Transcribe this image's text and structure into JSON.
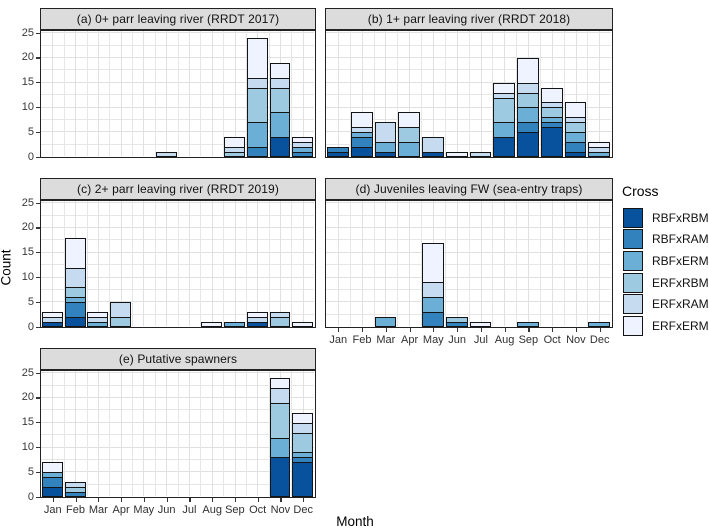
{
  "figure_title": "",
  "axes": {
    "x_title": "Month",
    "y_title": "Count"
  },
  "legend": {
    "title": "Cross",
    "entries": [
      "RBFxRBM",
      "RBFxRAM",
      "RBFxERM",
      "ERFxRBM",
      "ERFxRAM",
      "ERFxERM"
    ]
  },
  "colors": {
    "RBFxRBM": "#08519c",
    "RBFxRAM": "#3182bd",
    "RBFxERM": "#6baed6",
    "ERFxRBM": "#9ecae1",
    "ERFxRAM": "#c6dbef",
    "ERFxERM": "#eff3ff"
  },
  "chart_data": {
    "type": "bar",
    "stacked": true,
    "grid": true,
    "legend_position": "right",
    "xlabel": "Month",
    "ylabel": "Count",
    "ylim": [
      0,
      25
    ],
    "yticks": [
      0,
      5,
      10,
      15,
      20,
      25
    ],
    "categories": [
      "Jan",
      "Feb",
      "Mar",
      "Apr",
      "May",
      "Jun",
      "Jul",
      "Aug",
      "Sep",
      "Oct",
      "Nov",
      "Dec"
    ],
    "stack_order_bottom_to_top": [
      "RBFxRBM",
      "RBFxRAM",
      "RBFxERM",
      "ERFxRBM",
      "ERFxRAM",
      "ERFxERM"
    ],
    "panels": [
      {
        "key": "a",
        "strip": "(a) 0+ parr leaving river (RRDT 2017)",
        "col": 0,
        "row": 0,
        "x_labels": false,
        "y_labels": true,
        "bars": [
          {
            "month": "Jun",
            "total": 1,
            "segments": [
              {
                "cross": "ERFxRAM",
                "value": 1
              }
            ]
          },
          {
            "month": "Sep",
            "total": 4,
            "segments": [
              {
                "cross": "ERFxRBM",
                "value": 1
              },
              {
                "cross": "ERFxRAM",
                "value": 1
              },
              {
                "cross": "ERFxERM",
                "value": 2
              }
            ]
          },
          {
            "month": "Oct",
            "total": 24,
            "segments": [
              {
                "cross": "RBFxRAM",
                "value": 2
              },
              {
                "cross": "RBFxERM",
                "value": 5
              },
              {
                "cross": "ERFxRBM",
                "value": 7
              },
              {
                "cross": "ERFxRAM",
                "value": 2
              },
              {
                "cross": "ERFxERM",
                "value": 8
              }
            ]
          },
          {
            "month": "Nov",
            "total": 19,
            "segments": [
              {
                "cross": "RBFxRBM",
                "value": 4
              },
              {
                "cross": "RBFxERM",
                "value": 5
              },
              {
                "cross": "ERFxRBM",
                "value": 5
              },
              {
                "cross": "ERFxRAM",
                "value": 2
              },
              {
                "cross": "ERFxERM",
                "value": 3
              }
            ]
          },
          {
            "month": "Dec",
            "total": 4,
            "segments": [
              {
                "cross": "RBFxRAM",
                "value": 1
              },
              {
                "cross": "RBFxERM",
                "value": 1
              },
              {
                "cross": "ERFxRAM",
                "value": 1
              },
              {
                "cross": "ERFxERM",
                "value": 1
              }
            ]
          }
        ]
      },
      {
        "key": "b",
        "strip": "(b) 1+ parr leaving river (RRDT 2018)",
        "col": 1,
        "row": 0,
        "x_labels": false,
        "y_labels": false,
        "bars": [
          {
            "month": "Jan",
            "total": 2,
            "segments": [
              {
                "cross": "RBFxRBM",
                "value": 1
              },
              {
                "cross": "RBFxRAM",
                "value": 1
              }
            ]
          },
          {
            "month": "Feb",
            "total": 9,
            "segments": [
              {
                "cross": "RBFxRBM",
                "value": 2
              },
              {
                "cross": "RBFxRAM",
                "value": 2
              },
              {
                "cross": "RBFxERM",
                "value": 1
              },
              {
                "cross": "ERFxRAM",
                "value": 1
              },
              {
                "cross": "ERFxERM",
                "value": 3
              }
            ]
          },
          {
            "month": "Mar",
            "total": 7,
            "segments": [
              {
                "cross": "RBFxRBM",
                "value": 1
              },
              {
                "cross": "RBFxERM",
                "value": 2
              },
              {
                "cross": "ERFxRAM",
                "value": 4
              }
            ]
          },
          {
            "month": "Apr",
            "total": 9,
            "segments": [
              {
                "cross": "RBFxERM",
                "value": 3
              },
              {
                "cross": "ERFxRBM",
                "value": 3
              },
              {
                "cross": "ERFxERM",
                "value": 3
              }
            ]
          },
          {
            "month": "May",
            "total": 4,
            "segments": [
              {
                "cross": "RBFxRBM",
                "value": 1
              },
              {
                "cross": "ERFxRAM",
                "value": 3
              }
            ]
          },
          {
            "month": "Jun",
            "total": 1,
            "segments": [
              {
                "cross": "ERFxERM",
                "value": 1
              }
            ]
          },
          {
            "month": "Jul",
            "total": 1,
            "segments": [
              {
                "cross": "ERFxRAM",
                "value": 1
              }
            ]
          },
          {
            "month": "Aug",
            "total": 15,
            "segments": [
              {
                "cross": "RBFxRBM",
                "value": 4
              },
              {
                "cross": "RBFxERM",
                "value": 3
              },
              {
                "cross": "ERFxRBM",
                "value": 5
              },
              {
                "cross": "ERFxRAM",
                "value": 1
              },
              {
                "cross": "ERFxERM",
                "value": 2
              }
            ]
          },
          {
            "month": "Sep",
            "total": 20,
            "segments": [
              {
                "cross": "RBFxRBM",
                "value": 5
              },
              {
                "cross": "RBFxRAM",
                "value": 2
              },
              {
                "cross": "RBFxERM",
                "value": 3
              },
              {
                "cross": "ERFxRBM",
                "value": 3
              },
              {
                "cross": "ERFxRAM",
                "value": 2
              },
              {
                "cross": "ERFxERM",
                "value": 5
              }
            ]
          },
          {
            "month": "Oct",
            "total": 14,
            "segments": [
              {
                "cross": "RBFxRBM",
                "value": 6
              },
              {
                "cross": "RBFxRAM",
                "value": 1
              },
              {
                "cross": "RBFxERM",
                "value": 1
              },
              {
                "cross": "ERFxRBM",
                "value": 2
              },
              {
                "cross": "ERFxRAM",
                "value": 1
              },
              {
                "cross": "ERFxERM",
                "value": 3
              }
            ]
          },
          {
            "month": "Nov",
            "total": 11,
            "segments": [
              {
                "cross": "RBFxRBM",
                "value": 1
              },
              {
                "cross": "RBFxRAM",
                "value": 2
              },
              {
                "cross": "RBFxERM",
                "value": 2
              },
              {
                "cross": "ERFxRBM",
                "value": 2
              },
              {
                "cross": "ERFxRAM",
                "value": 1
              },
              {
                "cross": "ERFxERM",
                "value": 3
              }
            ]
          },
          {
            "month": "Dec",
            "total": 3,
            "segments": [
              {
                "cross": "RBFxERM",
                "value": 1
              },
              {
                "cross": "ERFxRAM",
                "value": 1
              },
              {
                "cross": "ERFxERM",
                "value": 1
              }
            ]
          }
        ]
      },
      {
        "key": "c",
        "strip": "(c) 2+ parr leaving river (RRDT 2019)",
        "col": 0,
        "row": 1,
        "x_labels": false,
        "y_labels": true,
        "bars": [
          {
            "month": "Jan",
            "total": 3,
            "segments": [
              {
                "cross": "RBFxRBM",
                "value": 1
              },
              {
                "cross": "ERFxRAM",
                "value": 1
              },
              {
                "cross": "ERFxERM",
                "value": 1
              }
            ]
          },
          {
            "month": "Feb",
            "total": 18,
            "segments": [
              {
                "cross": "RBFxRBM",
                "value": 2
              },
              {
                "cross": "RBFxRAM",
                "value": 3
              },
              {
                "cross": "RBFxERM",
                "value": 1
              },
              {
                "cross": "ERFxRBM",
                "value": 2
              },
              {
                "cross": "ERFxRAM",
                "value": 4
              },
              {
                "cross": "ERFxERM",
                "value": 6
              }
            ]
          },
          {
            "month": "Mar",
            "total": 3,
            "segments": [
              {
                "cross": "RBFxERM",
                "value": 1
              },
              {
                "cross": "ERFxRAM",
                "value": 1
              },
              {
                "cross": "ERFxERM",
                "value": 1
              }
            ]
          },
          {
            "month": "Apr",
            "total": 5,
            "segments": [
              {
                "cross": "ERFxRBM",
                "value": 2
              },
              {
                "cross": "ERFxRAM",
                "value": 3
              }
            ]
          },
          {
            "month": "Aug",
            "total": 1,
            "segments": [
              {
                "cross": "ERFxERM",
                "value": 1
              }
            ]
          },
          {
            "month": "Sep",
            "total": 1,
            "segments": [
              {
                "cross": "RBFxERM",
                "value": 1
              }
            ]
          },
          {
            "month": "Oct",
            "total": 3,
            "segments": [
              {
                "cross": "RBFxRBM",
                "value": 1
              },
              {
                "cross": "ERFxRAM",
                "value": 1
              },
              {
                "cross": "ERFxERM",
                "value": 1
              }
            ]
          },
          {
            "month": "Nov",
            "total": 3,
            "segments": [
              {
                "cross": "ERFxRBM",
                "value": 2
              },
              {
                "cross": "ERFxRAM",
                "value": 1
              }
            ]
          },
          {
            "month": "Dec",
            "total": 1,
            "segments": [
              {
                "cross": "ERFxERM",
                "value": 1
              }
            ]
          }
        ]
      },
      {
        "key": "d",
        "strip": "(d) Juveniles leaving FW (sea-entry traps)",
        "col": 1,
        "row": 1,
        "x_labels": true,
        "y_labels": false,
        "bars": [
          {
            "month": "Mar",
            "total": 2,
            "segments": [
              {
                "cross": "RBFxERM",
                "value": 2
              }
            ]
          },
          {
            "month": "May",
            "total": 17,
            "segments": [
              {
                "cross": "RBFxRAM",
                "value": 3
              },
              {
                "cross": "RBFxERM",
                "value": 3
              },
              {
                "cross": "ERFxRAM",
                "value": 3
              },
              {
                "cross": "ERFxERM",
                "value": 8
              }
            ]
          },
          {
            "month": "Jun",
            "total": 2,
            "segments": [
              {
                "cross": "RBFxRAM",
                "value": 1
              },
              {
                "cross": "ERFxRBM",
                "value": 1
              }
            ]
          },
          {
            "month": "Jul",
            "total": 1,
            "segments": [
              {
                "cross": "ERFxERM",
                "value": 1
              }
            ]
          },
          {
            "month": "Sep",
            "total": 1,
            "segments": [
              {
                "cross": "RBFxERM",
                "value": 1
              }
            ]
          },
          {
            "month": "Dec",
            "total": 1,
            "segments": [
              {
                "cross": "RBFxERM",
                "value": 1
              }
            ]
          }
        ]
      },
      {
        "key": "e",
        "strip": "(e) Putative spawners",
        "col": 0,
        "row": 2,
        "x_labels": true,
        "y_labels": true,
        "bars": [
          {
            "month": "Jan",
            "total": 7,
            "segments": [
              {
                "cross": "RBFxRBM",
                "value": 2
              },
              {
                "cross": "RBFxRAM",
                "value": 2
              },
              {
                "cross": "RBFxERM",
                "value": 1
              },
              {
                "cross": "ERFxERM",
                "value": 2
              }
            ]
          },
          {
            "month": "Feb",
            "total": 3,
            "segments": [
              {
                "cross": "RBFxRAM",
                "value": 1
              },
              {
                "cross": "ERFxRBM",
                "value": 1
              },
              {
                "cross": "ERFxRAM",
                "value": 1
              }
            ]
          },
          {
            "month": "Nov",
            "total": 24,
            "segments": [
              {
                "cross": "RBFxRBM",
                "value": 8
              },
              {
                "cross": "RBFxERM",
                "value": 4
              },
              {
                "cross": "ERFxRBM",
                "value": 7
              },
              {
                "cross": "ERFxRAM",
                "value": 3
              },
              {
                "cross": "ERFxERM",
                "value": 2
              }
            ]
          },
          {
            "month": "Dec",
            "total": 17,
            "segments": [
              {
                "cross": "RBFxRBM",
                "value": 7
              },
              {
                "cross": "RBFxRAM",
                "value": 1
              },
              {
                "cross": "RBFxERM",
                "value": 1
              },
              {
                "cross": "ERFxRBM",
                "value": 4
              },
              {
                "cross": "ERFxRAM",
                "value": 2
              },
              {
                "cross": "ERFxERM",
                "value": 2
              }
            ]
          }
        ]
      }
    ]
  }
}
